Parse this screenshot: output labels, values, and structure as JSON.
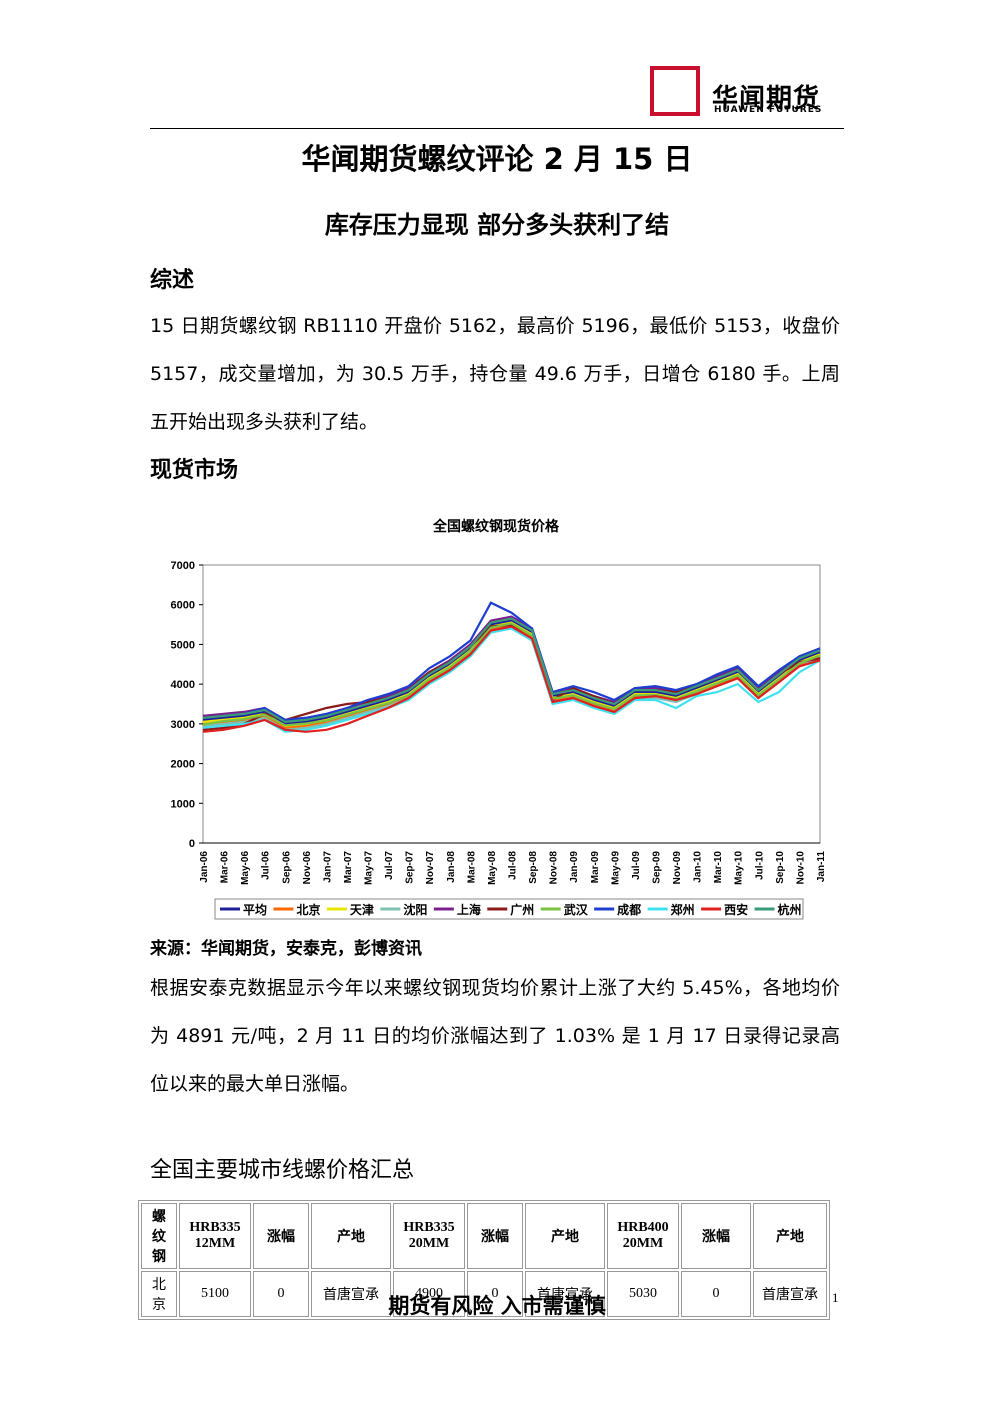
{
  "header": {
    "logo_cn": "华闻期货",
    "logo_en": "HUAWEN FUTURES"
  },
  "title": "华闻期货螺纹评论 2 月 15 日",
  "subtitle": "库存压力显现 部分多头获利了结",
  "sections": [
    {
      "heading": "综述",
      "paragraph": "15 日期货螺纹钢 RB1110 开盘价 5162，最高价 5196，最低价 5153，收盘价 5157，成交量增加，为 30.5 万手，持仓量 49.6 万手，日增仓 6180 手。上周五开始出现多头获利了结。"
    },
    {
      "heading": "现货市场",
      "source": "来源：华闻期货，安泰克，彭博资讯",
      "paragraph": "根据安泰克数据显示今年以来螺纹钢现货均价累计上涨了大约 5.45%，各地均价为 4891 元/吨，2 月 11 日的均价涨幅达到了 1.03% 是 1 月 17 日录得记录高位以来的最大单日涨幅。"
    },
    {
      "heading": "全国主要城市线螺价格汇总"
    }
  ],
  "chart_data": {
    "type": "line",
    "title": "全国螺纹钢现货价格",
    "categories": [
      "Jan-06",
      "Mar-06",
      "May-06",
      "Jul-06",
      "Sep-06",
      "Nov-06",
      "Jan-07",
      "Mar-07",
      "May-07",
      "Jul-07",
      "Sep-07",
      "Nov-07",
      "Jan-08",
      "Mar-08",
      "May-08",
      "Jul-08",
      "Sep-08",
      "Nov-08",
      "Jan-09",
      "Mar-09",
      "May-09",
      "Jul-09",
      "Sep-09",
      "Nov-09",
      "Jan-10",
      "Mar-10",
      "May-10",
      "Jul-10",
      "Sep-10",
      "Nov-10",
      "Jan-11"
    ],
    "ylim": [
      0,
      7000
    ],
    "yticks": [
      0,
      1000,
      2000,
      3000,
      4000,
      5000,
      6000,
      7000
    ],
    "series": [
      {
        "name": "平均",
        "color": "#1f1f9c",
        "values": [
          3100,
          3150,
          3200,
          3300,
          3000,
          3050,
          3150,
          3300,
          3450,
          3600,
          3800,
          4200,
          4500,
          4900,
          5500,
          5600,
          5300,
          3700,
          3800,
          3600,
          3450,
          3800,
          3800,
          3700,
          3900,
          4100,
          4300,
          3800,
          4200,
          4600,
          4800
        ]
      },
      {
        "name": "北京",
        "color": "#ff6a00",
        "values": [
          3000,
          3050,
          3100,
          3200,
          2900,
          2950,
          3050,
          3200,
          3350,
          3500,
          3700,
          4100,
          4400,
          4800,
          5400,
          5500,
          5200,
          3600,
          3700,
          3500,
          3350,
          3700,
          3700,
          3600,
          3800,
          4000,
          4200,
          3700,
          4100,
          4500,
          4700
        ]
      },
      {
        "name": "天津",
        "color": "#e6e600",
        "values": [
          3050,
          3100,
          3150,
          3250,
          2950,
          3000,
          3100,
          3250,
          3400,
          3550,
          3750,
          4150,
          4450,
          4850,
          5450,
          5550,
          5250,
          3650,
          3750,
          3550,
          3400,
          3750,
          3750,
          3650,
          3850,
          4050,
          4250,
          3750,
          4150,
          4550,
          4750
        ]
      },
      {
        "name": "沈阳",
        "color": "#7fc0b0",
        "values": [
          2950,
          3000,
          3050,
          3150,
          2850,
          2900,
          3000,
          3150,
          3300,
          3450,
          3650,
          4050,
          4350,
          4750,
          5350,
          5450,
          5150,
          3550,
          3650,
          3450,
          3300,
          3650,
          3650,
          3550,
          3750,
          3950,
          4150,
          3650,
          4050,
          4450,
          4650
        ]
      },
      {
        "name": "上海",
        "color": "#7a1f8c",
        "values": [
          3200,
          3250,
          3300,
          3400,
          3100,
          3150,
          3250,
          3400,
          3550,
          3700,
          3900,
          4300,
          4600,
          5000,
          5600,
          5700,
          5400,
          3800,
          3900,
          3700,
          3550,
          3900,
          3900,
          3800,
          4000,
          4200,
          4400,
          3900,
          4300,
          4700,
          4900
        ]
      },
      {
        "name": "广州",
        "color": "#8b1a1a",
        "values": [
          2850,
          2900,
          3000,
          3250,
          3100,
          3250,
          3400,
          3500,
          3550,
          3650,
          3850,
          4300,
          4550,
          4950,
          5450,
          5500,
          5100,
          3600,
          3900,
          3700,
          3500,
          3850,
          3850,
          3800,
          3950,
          4150,
          4350,
          3850,
          4250,
          4550,
          4650
        ]
      },
      {
        "name": "武汉",
        "color": "#7cc242",
        "values": [
          2980,
          3070,
          3120,
          3230,
          2960,
          3010,
          3080,
          3230,
          3380,
          3520,
          3720,
          4120,
          4420,
          4830,
          5420,
          5530,
          5220,
          3630,
          3720,
          3520,
          3370,
          3720,
          3730,
          3620,
          3820,
          4020,
          4220,
          3720,
          4120,
          4520,
          4720
        ]
      },
      {
        "name": "成都",
        "color": "#1e3ecf",
        "values": [
          3150,
          3200,
          3250,
          3400,
          3100,
          3150,
          3250,
          3400,
          3600,
          3750,
          3950,
          4400,
          4700,
          5100,
          6050,
          5800,
          5400,
          3800,
          3950,
          3800,
          3600,
          3900,
          3950,
          3850,
          4000,
          4250,
          4450,
          3950,
          4350,
          4700,
          4900
        ]
      },
      {
        "name": "郑州",
        "color": "#40e0f0",
        "values": [
          2900,
          2950,
          3000,
          3100,
          2800,
          2850,
          2950,
          3100,
          3250,
          3400,
          3600,
          4000,
          4300,
          4700,
          5300,
          5400,
          5100,
          3500,
          3600,
          3400,
          3250,
          3600,
          3600,
          3400,
          3700,
          3800,
          4000,
          3550,
          3800,
          4300,
          4600
        ]
      },
      {
        "name": "西安",
        "color": "#e0201e",
        "values": [
          2800,
          2850,
          2950,
          3100,
          2850,
          2800,
          2850,
          3000,
          3200,
          3400,
          3650,
          4050,
          4350,
          4750,
          5350,
          5450,
          5150,
          3550,
          3650,
          3450,
          3300,
          3650,
          3700,
          3600,
          3750,
          3950,
          4150,
          3650,
          4050,
          4450,
          4600
        ]
      },
      {
        "name": "杭州",
        "color": "#3a9a7a",
        "values": [
          3150,
          3200,
          3250,
          3350,
          3050,
          3100,
          3200,
          3350,
          3500,
          3650,
          3850,
          4250,
          4550,
          4950,
          5550,
          5650,
          5350,
          3750,
          3850,
          3650,
          3500,
          3850,
          3850,
          3750,
          3950,
          4150,
          4350,
          3850,
          4250,
          4650,
          4850
        ]
      }
    ],
    "grid": false,
    "legend": "bottom"
  },
  "table": {
    "header": [
      "螺纹钢",
      "HRB335 12MM",
      "涨幅",
      "产地",
      "HRB335 20MM",
      "涨幅",
      "产地",
      "HRB400 20MM",
      "涨幅",
      "产地"
    ],
    "rows": [
      [
        "北京",
        "5100",
        "0",
        "首唐宣承",
        "4900",
        "0",
        "首唐宣承",
        "5030",
        "0",
        "首唐宣承"
      ]
    ]
  },
  "footer": "期货有风险 入市需谨慎",
  "page_number": "1"
}
